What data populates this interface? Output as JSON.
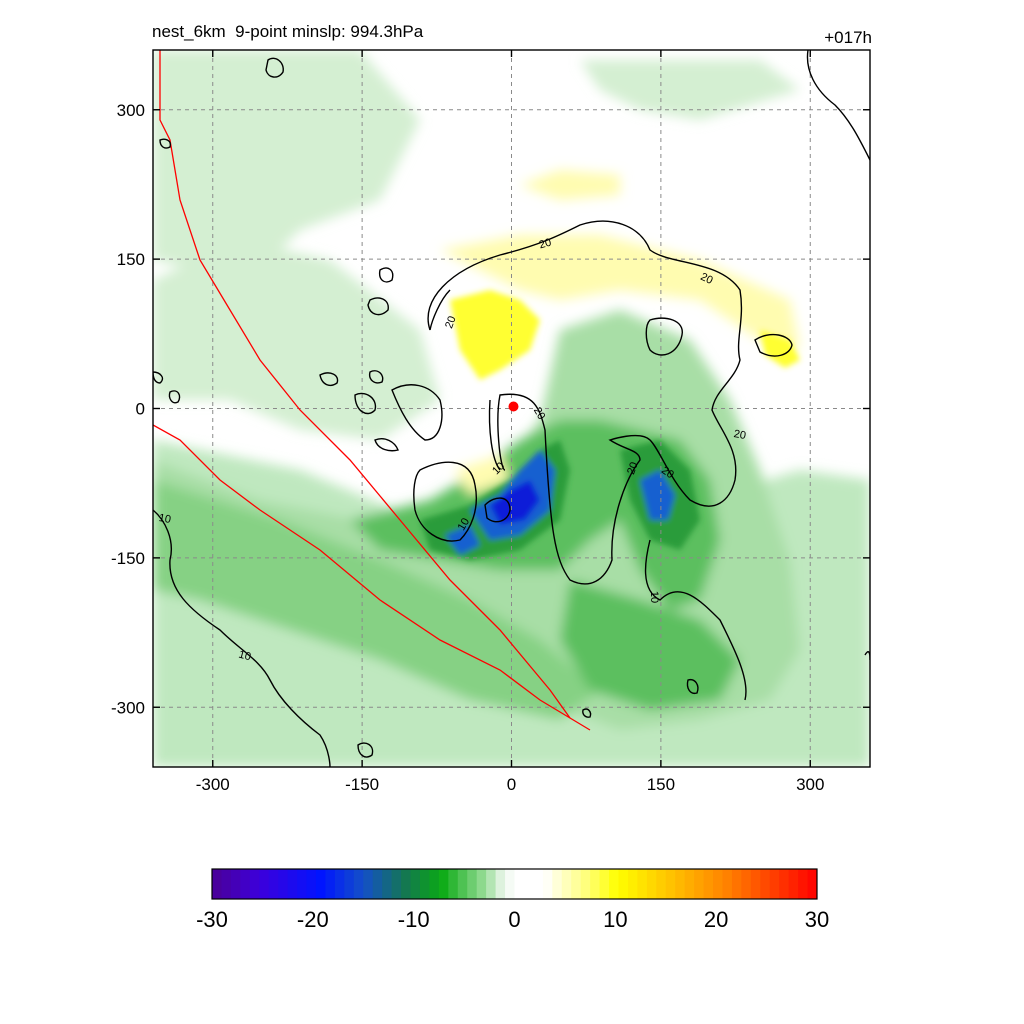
{
  "chart_data": {
    "type": "heatmap",
    "title_left": "nest_6km  9-point minslp: 994.3hPa",
    "title_right": "+017h",
    "xlim": [
      -360,
      360
    ],
    "ylim": [
      -360,
      360
    ],
    "x_ticks": [
      -300,
      -150,
      0,
      150,
      300
    ],
    "y_ticks": [
      -300,
      -150,
      0,
      150,
      300
    ],
    "x_tick_labels": [
      "-300",
      "-150",
      "0",
      "150",
      "300"
    ],
    "y_tick_labels": [
      "300",
      "150",
      "0",
      "-150",
      "-300"
    ],
    "grid": true,
    "colorbar": {
      "range": [
        -30,
        30
      ],
      "ticks": [
        "-30",
        "-20",
        "-10",
        "0",
        "10",
        "20",
        "30"
      ],
      "orientation": "horizontal",
      "placement": "bottom"
    },
    "contour_labels": [
      "20",
      "20",
      "20",
      "20",
      "20",
      "20",
      "10",
      "20",
      "10",
      "10",
      "10"
    ],
    "center_marker": {
      "x": 2,
      "y": 2,
      "color": "#ff0000"
    },
    "colors": {
      "negative_strong": "#0a1ed8",
      "negative_medium": "#21a83a",
      "negative_weak": "#bfe8bf",
      "positive_weak": "#fffcb0",
      "positive_medium": "#ffff20",
      "boundary_line": "#ff0000",
      "contour": "#000000"
    }
  }
}
